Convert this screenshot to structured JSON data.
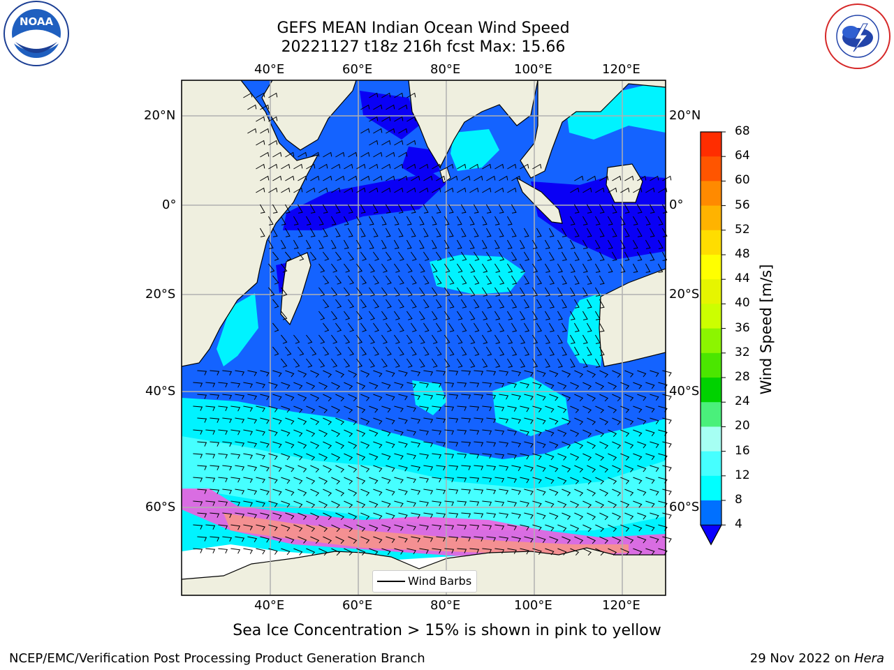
{
  "title": {
    "line1": "GEFS MEAN Indian Ocean Wind Speed",
    "line2": "20221127 t18z 216h fcst   Max: 15.66"
  },
  "map": {
    "lon_labels": [
      "40°E",
      "60°E",
      "80°E",
      "100°E",
      "120°E"
    ],
    "lat_labels": [
      "20°N",
      "0°",
      "20°S",
      "40°S",
      "60°S"
    ],
    "legend_label": "Wind Barbs",
    "colors": {
      "land": "#efefdf",
      "sea_ice_land": "#ffffff",
      "ocean_4_8": "#1463ff",
      "ocean_calm": "#0a00f5",
      "ocean_8_12": "#00f3ff",
      "ocean_12_16": "#46ffff",
      "ice_pink": "#ff55dd",
      "ice_orange": "#ffa070"
    }
  },
  "colorbar": {
    "label": "Wind Speed [m/s]",
    "ticks": [
      "68",
      "64",
      "60",
      "56",
      "52",
      "48",
      "44",
      "40",
      "36",
      "32",
      "28",
      "24",
      "20",
      "16",
      "12",
      "8",
      "4"
    ],
    "colors": [
      "#ff0000",
      "#ff2d00",
      "#ff5500",
      "#ff8a00",
      "#ffb300",
      "#ffdd00",
      "#ffff00",
      "#e6f500",
      "#ccff00",
      "#8cf500",
      "#4be600",
      "#00d200",
      "#4af07b",
      "#a6fff3",
      "#46ffff",
      "#00ffff",
      "#0070ff"
    ],
    "under_color": "#0a00ff"
  },
  "caption": "Sea Ice Concentration > 15% is shown in pink to yellow",
  "footer": {
    "left": "NCEP/EMC/Verification Post Processing Product Generation Branch",
    "right_prefix": "29 Nov 2022 on ",
    "right_italic": "Hera"
  },
  "logos": {
    "noaa_text": "NOAA",
    "nws_text": "NATIONAL WEATHER SERVICE"
  }
}
